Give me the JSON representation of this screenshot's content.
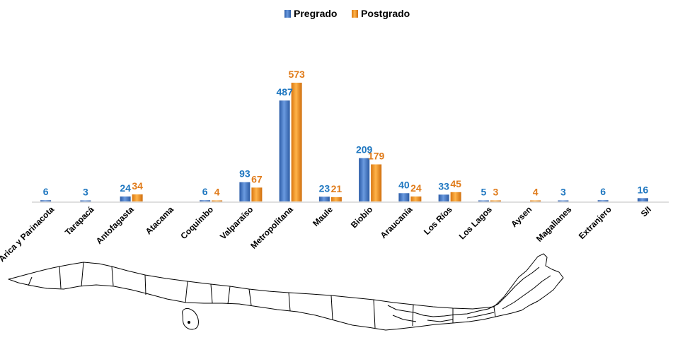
{
  "chart_data": {
    "type": "bar",
    "categories": [
      "Arica y Parinacota",
      "Tarapacá",
      "Antofagasta",
      "Atacama",
      "Coquimbo",
      "Valparaíso",
      "Metropolitana",
      "Maule",
      "Biobío",
      "Araucanía",
      "Los Ríos",
      "Los Lagos",
      "Aysen",
      "Magallanes",
      "Extranjero",
      "S/I"
    ],
    "series": [
      {
        "name": "Pregrado",
        "values": [
          6,
          3,
          24,
          null,
          6,
          93,
          487,
          23,
          209,
          40,
          33,
          5,
          null,
          3,
          6,
          16
        ],
        "color": "#3a6fc0",
        "label_color": "#1f77c0"
      },
      {
        "name": "Postgrado",
        "values": [
          null,
          null,
          34,
          null,
          4,
          67,
          573,
          21,
          179,
          24,
          45,
          3,
          4,
          null,
          null,
          null
        ],
        "color": "#f0921c",
        "label_color": "#e07b1a"
      }
    ],
    "legend_position": "top-center",
    "grid": false,
    "ylim": [
      0,
      600
    ]
  },
  "map": {
    "icon": "chile-map-icon"
  }
}
